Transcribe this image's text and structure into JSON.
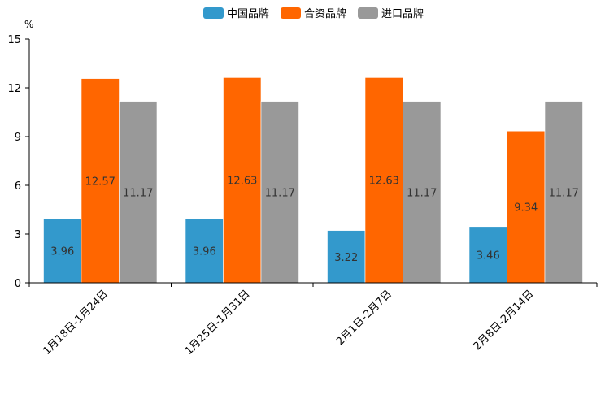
{
  "chart_data": {
    "type": "bar",
    "title": "",
    "unit": "%",
    "xlabel": "",
    "ylabel": "%",
    "ylim": [
      0,
      15
    ],
    "yticks": [
      0,
      3,
      6,
      9,
      12,
      15
    ],
    "categories": [
      "1月18日-1月24日",
      "1月25日-1月31日",
      "2月1日-2月7日",
      "2月8日-2月14日"
    ],
    "series": [
      {
        "name": "中国品牌",
        "color": "#3399cc",
        "values": [
          3.96,
          3.96,
          3.22,
          3.46
        ],
        "labels": [
          "3.96",
          "3.96",
          "3.22",
          "3.46"
        ]
      },
      {
        "name": "合资品牌",
        "color": "#ff6600",
        "values": [
          12.57,
          12.63,
          12.63,
          9.34
        ],
        "labels": [
          "12.57",
          "12.63",
          "12.63",
          "9.34"
        ]
      },
      {
        "name": "进口品牌",
        "color": "#999999",
        "values": [
          11.17,
          11.17,
          11.17,
          11.17
        ],
        "labels": [
          "11.17",
          "11.17",
          "11.17",
          "11.17"
        ]
      }
    ],
    "legend_position": "top-center",
    "grid": false
  }
}
